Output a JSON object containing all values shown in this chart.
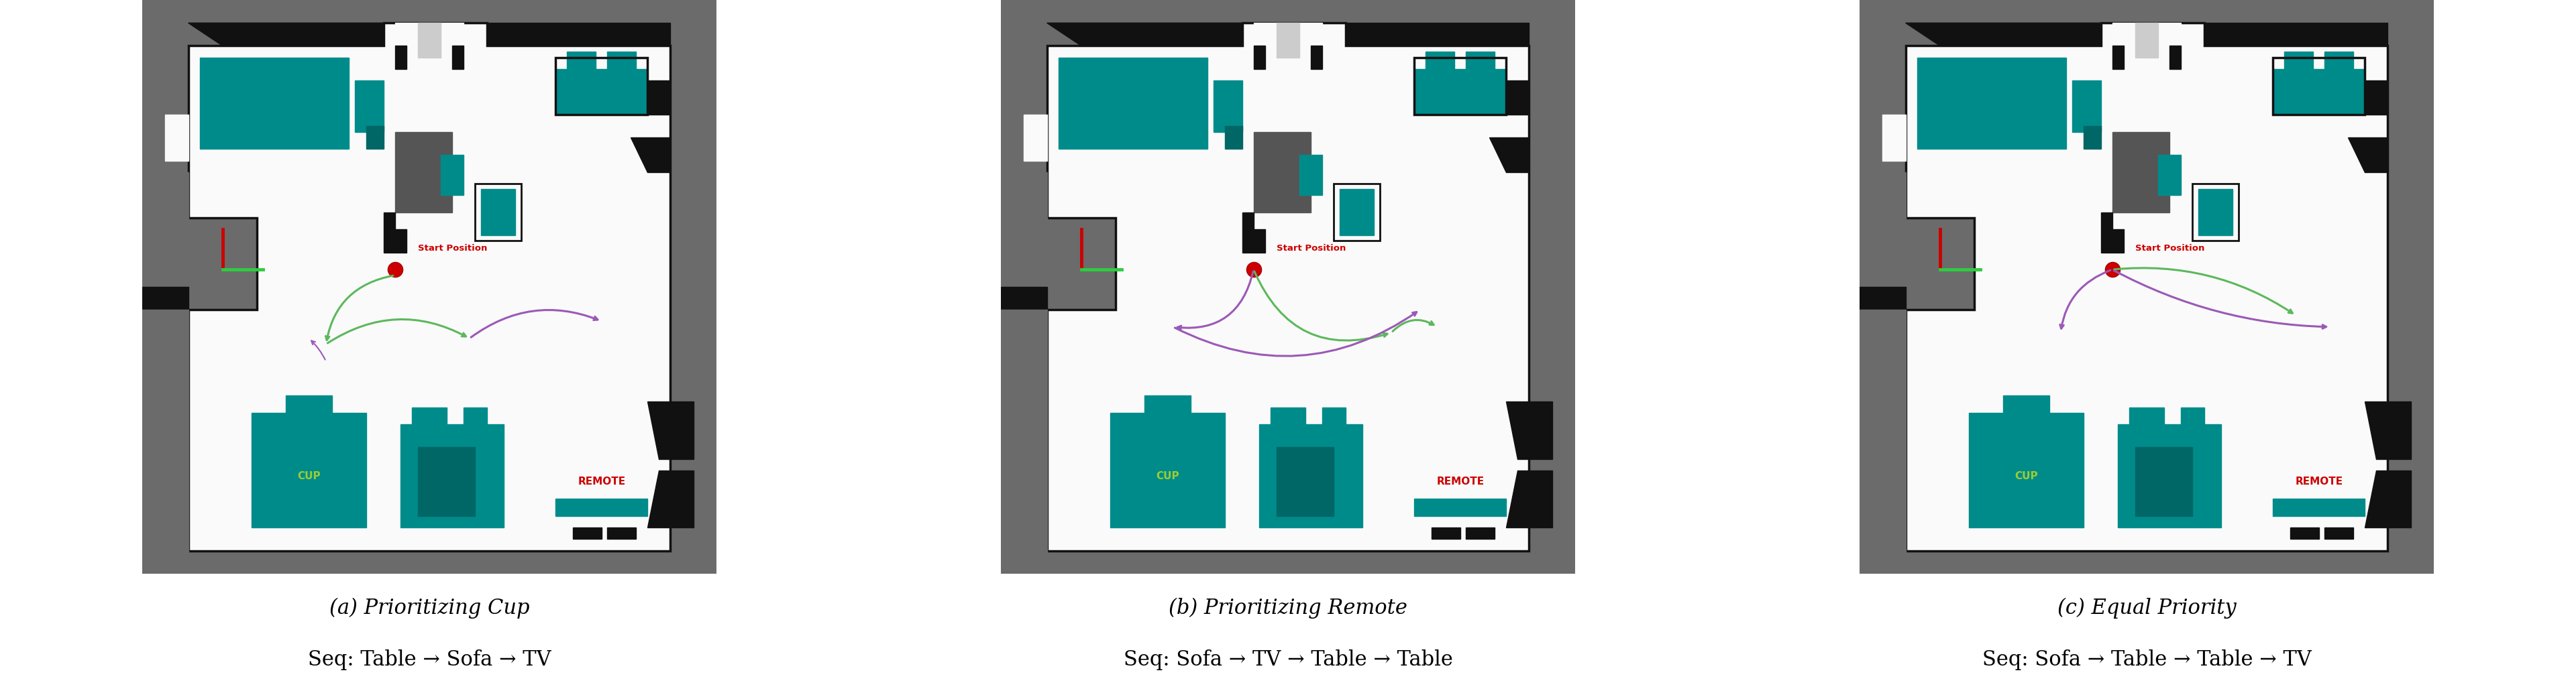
{
  "figure_width": 38.4,
  "figure_height": 10.31,
  "background_color": "#ffffff",
  "panels": [
    {
      "title": "(a) Prioritizing Cup",
      "subtitle": "Seq: Table → Sofa → TV"
    },
    {
      "title": "(b) Prioritizing Remote",
      "subtitle": "Seq: Sofa → TV → Table → Table"
    },
    {
      "title": "(c) Equal Priority",
      "subtitle": "Seq: Sofa → Table → Table → TV"
    }
  ],
  "caption_fontsize": 22,
  "subtitle_fontsize": 22,
  "start_label": "Start Position",
  "cup_label": "CUP",
  "remote_label": "REMOTE",
  "start_color": "#cc0000",
  "cup_label_color": "#9acd32",
  "remote_label_color": "#cc0000",
  "green": "#5cb85c",
  "purple": "#9b59b6",
  "teal": "#008b8b",
  "dark_gray": "#555555",
  "wall_black": "#111111",
  "outer_gray": "#6b6b6b"
}
